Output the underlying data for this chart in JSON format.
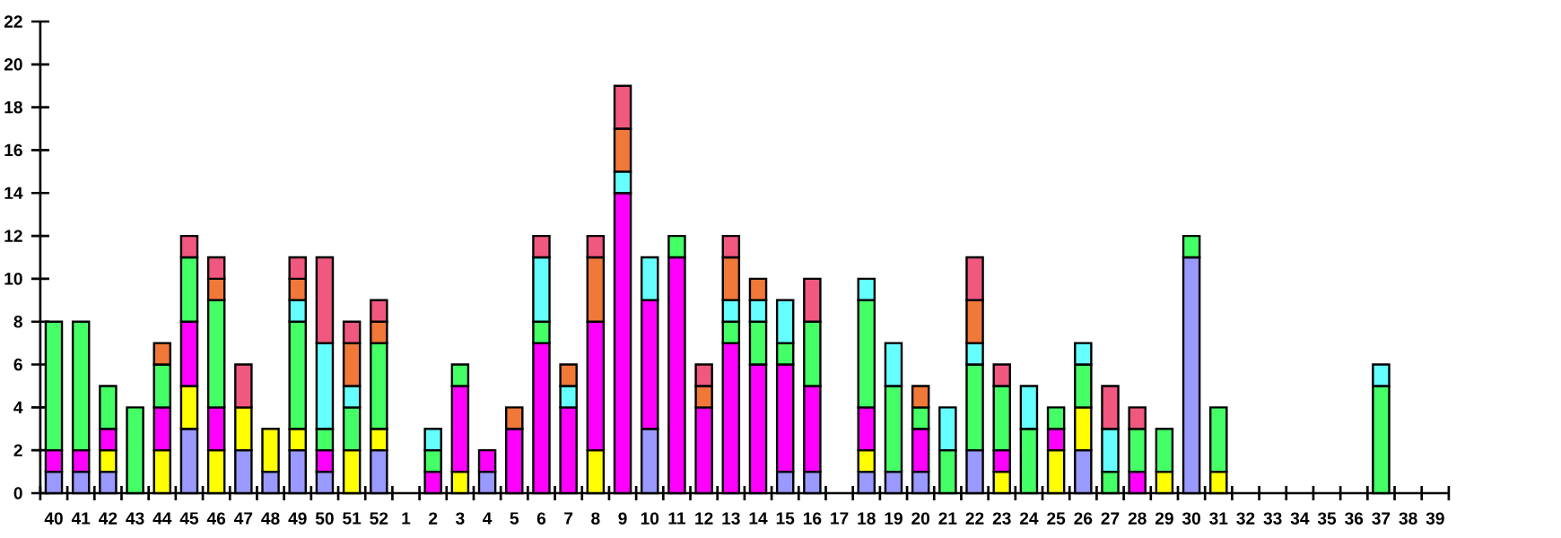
{
  "chart_data": {
    "type": "bar",
    "stacked": true,
    "categories": [
      "40",
      "41",
      "42",
      "43",
      "44",
      "45",
      "46",
      "47",
      "48",
      "49",
      "50",
      "51",
      "52",
      "1",
      "2",
      "3",
      "4",
      "5",
      "6",
      "7",
      "8",
      "9",
      "10",
      "11",
      "12",
      "13",
      "14",
      "15",
      "16",
      "17",
      "18",
      "19",
      "20",
      "21",
      "22",
      "23",
      "24",
      "25",
      "26",
      "27",
      "28",
      "29",
      "30",
      "31",
      "32",
      "33",
      "34",
      "35",
      "36",
      "37",
      "38",
      "39"
    ],
    "series": [
      {
        "color": "#9999ff",
        "values": [
          1,
          1,
          1,
          null,
          null,
          3,
          null,
          2,
          1,
          2,
          1,
          null,
          2,
          null,
          null,
          null,
          1,
          null,
          null,
          null,
          null,
          null,
          3,
          null,
          null,
          null,
          null,
          1,
          1,
          null,
          1,
          1,
          1,
          null,
          2,
          null,
          null,
          null,
          2,
          null,
          null,
          null,
          11,
          null,
          null,
          null,
          null,
          null,
          null,
          null,
          null,
          null
        ]
      },
      {
        "color": "#ffff00",
        "values": [
          null,
          null,
          1,
          null,
          2,
          2,
          2,
          2,
          2,
          1,
          null,
          2,
          1,
          null,
          null,
          1,
          null,
          null,
          null,
          null,
          2,
          null,
          null,
          null,
          null,
          null,
          null,
          null,
          null,
          null,
          1,
          null,
          null,
          null,
          null,
          1,
          null,
          2,
          2,
          null,
          null,
          1,
          null,
          1,
          null,
          null,
          null,
          null,
          null,
          null,
          null,
          null
        ]
      },
      {
        "color": "#ff00ff",
        "values": [
          1,
          1,
          1,
          null,
          2,
          3,
          2,
          null,
          null,
          null,
          1,
          null,
          null,
          null,
          1,
          4,
          1,
          3,
          7,
          4,
          6,
          14,
          6,
          11,
          4,
          7,
          6,
          5,
          4,
          null,
          2,
          null,
          2,
          null,
          null,
          1,
          null,
          1,
          null,
          null,
          1,
          null,
          null,
          null,
          null,
          null,
          null,
          null,
          null,
          null,
          null,
          null
        ]
      },
      {
        "color": "#44ff66",
        "values": [
          6,
          6,
          2,
          4,
          2,
          3,
          5,
          null,
          null,
          5,
          1,
          2,
          4,
          null,
          1,
          1,
          null,
          null,
          1,
          null,
          null,
          null,
          null,
          1,
          null,
          1,
          2,
          1,
          3,
          null,
          5,
          4,
          1,
          2,
          4,
          3,
          3,
          1,
          2,
          1,
          2,
          2,
          1,
          3,
          null,
          null,
          null,
          null,
          null,
          5,
          null,
          null
        ]
      },
      {
        "color": "#66ffff",
        "values": [
          null,
          null,
          null,
          null,
          null,
          null,
          null,
          null,
          null,
          1,
          4,
          1,
          null,
          null,
          1,
          null,
          null,
          null,
          3,
          1,
          null,
          1,
          2,
          null,
          null,
          1,
          1,
          2,
          null,
          null,
          1,
          2,
          null,
          2,
          1,
          null,
          2,
          null,
          1,
          2,
          null,
          null,
          null,
          null,
          null,
          null,
          null,
          null,
          null,
          1,
          null,
          null
        ]
      },
      {
        "color": "#f07838",
        "values": [
          null,
          null,
          null,
          null,
          1,
          null,
          1,
          null,
          null,
          1,
          null,
          2,
          1,
          null,
          null,
          null,
          null,
          1,
          null,
          1,
          3,
          2,
          null,
          null,
          1,
          2,
          1,
          null,
          null,
          null,
          null,
          null,
          1,
          null,
          2,
          null,
          null,
          null,
          null,
          null,
          null,
          null,
          null,
          null,
          null,
          null,
          null,
          null,
          null,
          null,
          null,
          null
        ]
      },
      {
        "color": "#f0587f",
        "values": [
          null,
          null,
          null,
          null,
          null,
          1,
          1,
          2,
          null,
          1,
          4,
          1,
          1,
          null,
          null,
          null,
          null,
          null,
          1,
          null,
          1,
          2,
          null,
          null,
          1,
          1,
          null,
          null,
          2,
          null,
          null,
          null,
          null,
          null,
          2,
          1,
          null,
          null,
          null,
          2,
          1,
          null,
          null,
          null,
          null,
          null,
          null,
          null,
          null,
          null,
          null,
          null
        ]
      }
    ],
    "ylim": [
      0,
      22
    ],
    "yticks": [
      0,
      2,
      4,
      6,
      8,
      10,
      12,
      14,
      16,
      18,
      20,
      22
    ]
  }
}
